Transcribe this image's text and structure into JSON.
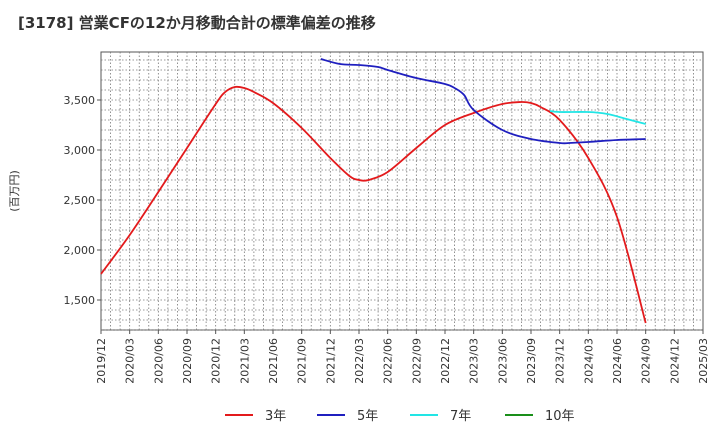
{
  "chart_data": {
    "type": "line",
    "title": "[3178]  営業CFの12か月移動合計の標準偏差の推移",
    "ylabel": "(百万円)",
    "xlabel": "",
    "x_ticks": [
      "2019/12",
      "2020/03",
      "2020/06",
      "2020/09",
      "2020/12",
      "2021/03",
      "2021/06",
      "2021/09",
      "2021/12",
      "2022/03",
      "2022/06",
      "2022/09",
      "2022/12",
      "2023/03",
      "2023/06",
      "2023/09",
      "2023/12",
      "2024/03",
      "2024/06",
      "2024/09",
      "2024/12",
      "2025/03"
    ],
    "y_ticks": [
      1500,
      2000,
      2500,
      3000,
      3500
    ],
    "y_tick_labels": [
      "1,500",
      "2,000",
      "2,500",
      "3,000",
      "3,500"
    ],
    "ylim": [
      1200,
      3980
    ],
    "grid": true,
    "legend_position": "bottom",
    "series": [
      {
        "name": "3年",
        "color": "#e31a1c",
        "points": [
          [
            "2019/12",
            1760
          ],
          [
            "2020/03",
            2150
          ],
          [
            "2020/06",
            2580
          ],
          [
            "2020/09",
            3020
          ],
          [
            "2020/12",
            3460
          ],
          [
            "2021/01",
            3580
          ],
          [
            "2021/02",
            3630
          ],
          [
            "2021/03",
            3620
          ],
          [
            "2021/04",
            3580
          ],
          [
            "2021/06",
            3470
          ],
          [
            "2021/09",
            3220
          ],
          [
            "2021/12",
            2920
          ],
          [
            "2022/02",
            2740
          ],
          [
            "2022/03",
            2700
          ],
          [
            "2022/04",
            2700
          ],
          [
            "2022/06",
            2780
          ],
          [
            "2022/09",
            3020
          ],
          [
            "2022/12",
            3250
          ],
          [
            "2023/03",
            3370
          ],
          [
            "2023/06",
            3460
          ],
          [
            "2023/08",
            3480
          ],
          [
            "2023/09",
            3470
          ],
          [
            "2023/10",
            3430
          ],
          [
            "2023/12",
            3300
          ],
          [
            "2024/03",
            2920
          ],
          [
            "2024/06",
            2330
          ],
          [
            "2024/09",
            1270
          ]
        ]
      },
      {
        "name": "5年",
        "color": "#1f1fbf",
        "points": [
          [
            "2021/11",
            3910
          ],
          [
            "2022/01",
            3860
          ],
          [
            "2022/03",
            3850
          ],
          [
            "2022/05",
            3830
          ],
          [
            "2022/06",
            3800
          ],
          [
            "2022/09",
            3720
          ],
          [
            "2022/12",
            3660
          ],
          [
            "2023/01",
            3620
          ],
          [
            "2023/02",
            3550
          ],
          [
            "2023/03",
            3400
          ],
          [
            "2023/06",
            3200
          ],
          [
            "2023/09",
            3110
          ],
          [
            "2023/12",
            3070
          ],
          [
            "2024/01",
            3070
          ],
          [
            "2024/03",
            3080
          ],
          [
            "2024/06",
            3100
          ],
          [
            "2024/09",
            3110
          ]
        ]
      },
      {
        "name": "7年",
        "color": "#22e5e5",
        "points": [
          [
            "2023/11",
            3390
          ],
          [
            "2023/12",
            3380
          ],
          [
            "2024/03",
            3380
          ],
          [
            "2024/05",
            3360
          ],
          [
            "2024/07",
            3310
          ],
          [
            "2024/09",
            3260
          ]
        ]
      },
      {
        "name": "10年",
        "color": "#1a8f1a",
        "points": []
      }
    ]
  }
}
